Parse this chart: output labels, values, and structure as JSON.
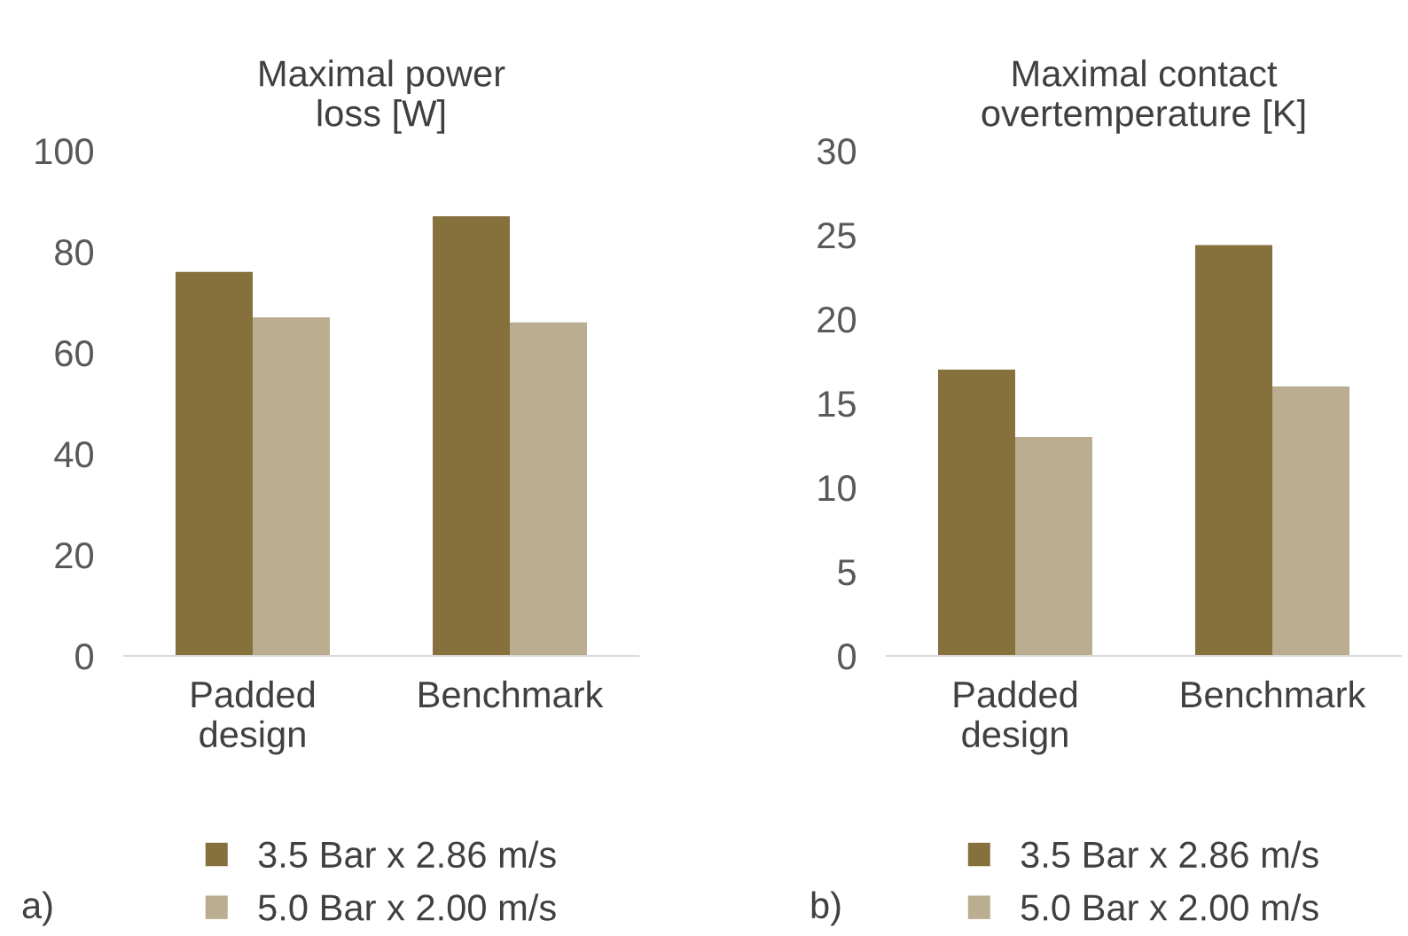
{
  "chart_data": [
    {
      "type": "bar",
      "title": "Maximal power\nloss [W]",
      "categories": [
        "Padded\ndesign",
        "Benchmark"
      ],
      "series": [
        {
          "name": "3.5 Bar x 2.86 m/s",
          "color": "#86703c",
          "values": [
            76,
            87
          ]
        },
        {
          "name": "5.0 Bar x 2.00 m/s",
          "color": "#bbad8f",
          "values": [
            67,
            66
          ]
        }
      ],
      "ylim": [
        0,
        100
      ],
      "yticks": [
        0,
        20,
        40,
        60,
        80,
        100
      ],
      "grid": false,
      "legend": "bottom",
      "annotations": [
        "a)"
      ]
    },
    {
      "type": "bar",
      "title": "Maximal contact\novertemperature [K]",
      "categories": [
        "Padded\ndesign",
        "Benchmark"
      ],
      "series": [
        {
          "name": "3.5 Bar x 2.86 m/s",
          "color": "#86703c",
          "values": [
            17,
            24.4
          ]
        },
        {
          "name": "5.0 Bar x 2.00 m/s",
          "color": "#bbad8f",
          "values": [
            13,
            16
          ]
        }
      ],
      "ylim": [
        0,
        30
      ],
      "yticks": [
        0,
        5,
        10,
        15,
        20,
        25,
        30
      ],
      "grid": false,
      "legend": "bottom",
      "annotations": [
        "b)"
      ]
    }
  ]
}
